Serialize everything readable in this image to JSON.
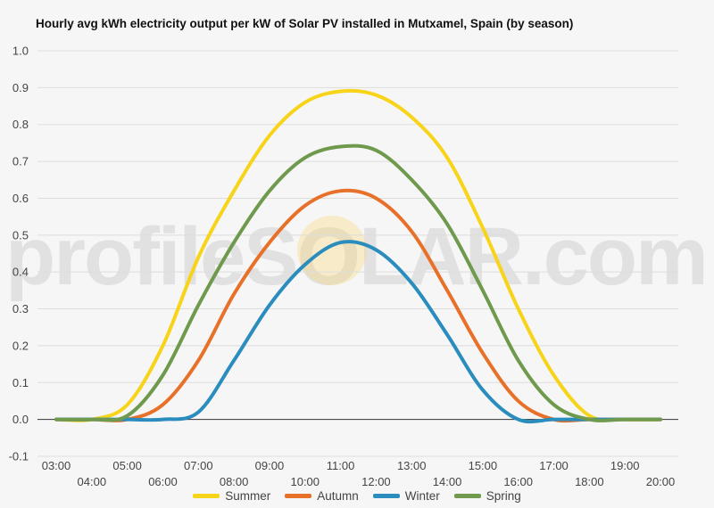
{
  "chart_data": {
    "type": "line",
    "title": "Hourly avg kWh electricity output per kW of Solar PV installed in Mutxamel, Spain (by season)",
    "watermark": "profileSOLAR.com",
    "xlabel": "",
    "ylabel": "",
    "ylim": [
      -0.1,
      1.0
    ],
    "yticks": [
      "-0.1",
      "0.0",
      "0.1",
      "0.2",
      "0.3",
      "0.4",
      "0.5",
      "0.6",
      "0.7",
      "0.8",
      "0.9",
      "1.0"
    ],
    "categories": [
      "03:00",
      "04:00",
      "05:00",
      "06:00",
      "07:00",
      "08:00",
      "09:00",
      "10:00",
      "11:00",
      "12:00",
      "13:00",
      "14:00",
      "15:00",
      "16:00",
      "17:00",
      "18:00",
      "19:00",
      "20:00"
    ],
    "grid": true,
    "legend_position": "bottom",
    "series": [
      {
        "name": "Summer",
        "color": "#f7d419",
        "values": [
          0.0,
          0.0,
          0.04,
          0.2,
          0.44,
          0.62,
          0.77,
          0.86,
          0.89,
          0.88,
          0.82,
          0.71,
          0.52,
          0.3,
          0.12,
          0.01,
          0.0,
          0.0
        ]
      },
      {
        "name": "Autumn",
        "color": "#e8712a",
        "values": [
          0.0,
          0.0,
          0.0,
          0.04,
          0.16,
          0.34,
          0.48,
          0.58,
          0.62,
          0.6,
          0.51,
          0.35,
          0.18,
          0.05,
          0.0,
          0.0,
          0.0,
          0.0
        ]
      },
      {
        "name": "Winter",
        "color": "#2a8dbd",
        "values": [
          0.0,
          0.0,
          0.0,
          0.0,
          0.02,
          0.16,
          0.31,
          0.42,
          0.48,
          0.46,
          0.37,
          0.23,
          0.08,
          0.0,
          0.0,
          0.0,
          0.0,
          0.0
        ]
      },
      {
        "name": "Spring",
        "color": "#6f9a4d",
        "values": [
          0.0,
          0.0,
          0.01,
          0.12,
          0.31,
          0.48,
          0.62,
          0.71,
          0.74,
          0.73,
          0.65,
          0.53,
          0.35,
          0.16,
          0.04,
          0.0,
          0.0,
          0.0
        ]
      }
    ]
  }
}
